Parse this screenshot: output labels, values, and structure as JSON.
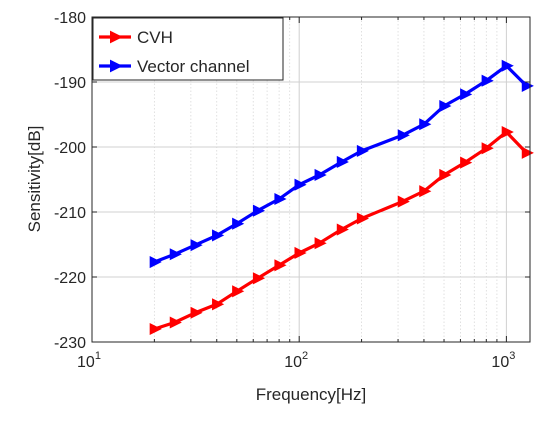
{
  "chart_data": {
    "type": "line",
    "title": "",
    "xlabel": "Frequency[Hz]",
    "ylabel": "Sensitivity[dB]",
    "x_scale": "log",
    "xlim": [
      10,
      1300
    ],
    "ylim": [
      -230,
      -180
    ],
    "x_ticks": [
      {
        "base": "10",
        "exp": "1",
        "value": 10
      },
      {
        "base": "10",
        "exp": "2",
        "value": 100
      },
      {
        "base": "10",
        "exp": "3",
        "value": 1000
      }
    ],
    "y_ticks": [
      {
        "label": "-180",
        "value": -180
      },
      {
        "label": "-190",
        "value": -190
      },
      {
        "label": "-200",
        "value": -200
      },
      {
        "label": "-210",
        "value": -210
      },
      {
        "label": "-220",
        "value": -220
      },
      {
        "label": "-230",
        "value": -230
      }
    ],
    "grid": true,
    "legend_position": "top-left",
    "series": [
      {
        "name": "CVH",
        "color": "#ff0000",
        "marker": "triangle-right",
        "x": [
          20,
          25,
          31.5,
          40,
          50,
          63,
          80,
          100,
          125,
          160,
          200,
          315,
          400,
          500,
          630,
          800,
          1000,
          1250
        ],
        "y": [
          -228,
          -227,
          -225.5,
          -224.2,
          -222.2,
          -220.2,
          -218.2,
          -216.3,
          -214.8,
          -212.7,
          -211,
          -208.4,
          -206.8,
          -204.3,
          -202.4,
          -200.2,
          -197.7,
          -200.9
        ]
      },
      {
        "name": "Vector channel",
        "color": "#0000ff",
        "marker": "triangle-right",
        "x": [
          20,
          25,
          31.5,
          40,
          50,
          63,
          80,
          100,
          125,
          160,
          200,
          315,
          400,
          500,
          630,
          800,
          1000,
          1250
        ],
        "y": [
          -217.7,
          -216.5,
          -215.1,
          -213.6,
          -211.8,
          -209.8,
          -208,
          -205.8,
          -204.3,
          -202.3,
          -200.6,
          -198.2,
          -196.5,
          -193.7,
          -191.9,
          -189.8,
          -187.5,
          -190.6
        ]
      }
    ]
  }
}
